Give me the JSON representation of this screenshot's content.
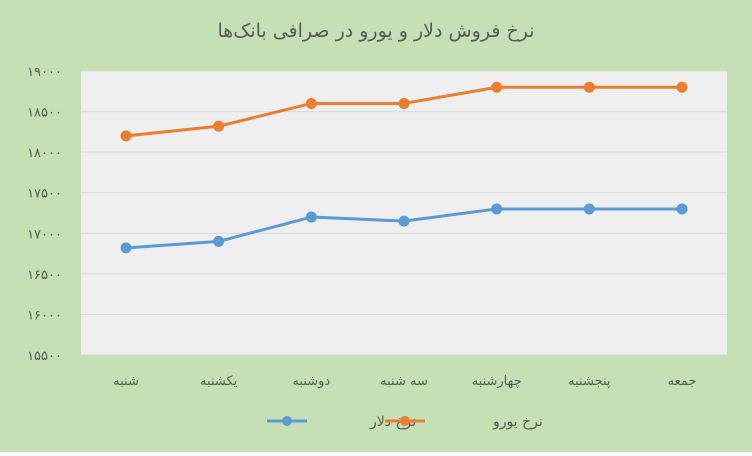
{
  "colors": {
    "page_bg": "#c5e0b4",
    "plot_bg": "#efefef",
    "grid": "#d9d9d9",
    "text": "#595959",
    "dollar": "#5b9bd5",
    "euro": "#ed7d31"
  },
  "chart_data": {
    "type": "line",
    "title": "نرخ فروش دلار و یورو در صرافی بانک‌ها",
    "categories": [
      "شنبه",
      "یکشنبه",
      "دوشنبه",
      "سه شنبه",
      "چهارشنبه",
      "پنجشنبه",
      "جمعه"
    ],
    "yticks": [
      "۱۵۵۰۰",
      "۱۶۰۰۰",
      "۱۶۵۰۰",
      "۱۷۰۰۰",
      "۱۷۵۰۰",
      "۱۸۰۰۰",
      "۱۸۵۰۰",
      "۱۹۰۰۰"
    ],
    "ylim": [
      15500,
      19000
    ],
    "grid": true,
    "legend_position": "bottom",
    "series": [
      {
        "name": "نرخ دلار",
        "color_key": "dollar",
        "values": [
          16820,
          16900,
          17200,
          17150,
          17300,
          17300,
          17300
        ]
      },
      {
        "name": "نرخ یورو",
        "color_key": "euro",
        "values": [
          18200,
          18320,
          18600,
          18600,
          18800,
          18800,
          18800
        ]
      }
    ]
  }
}
